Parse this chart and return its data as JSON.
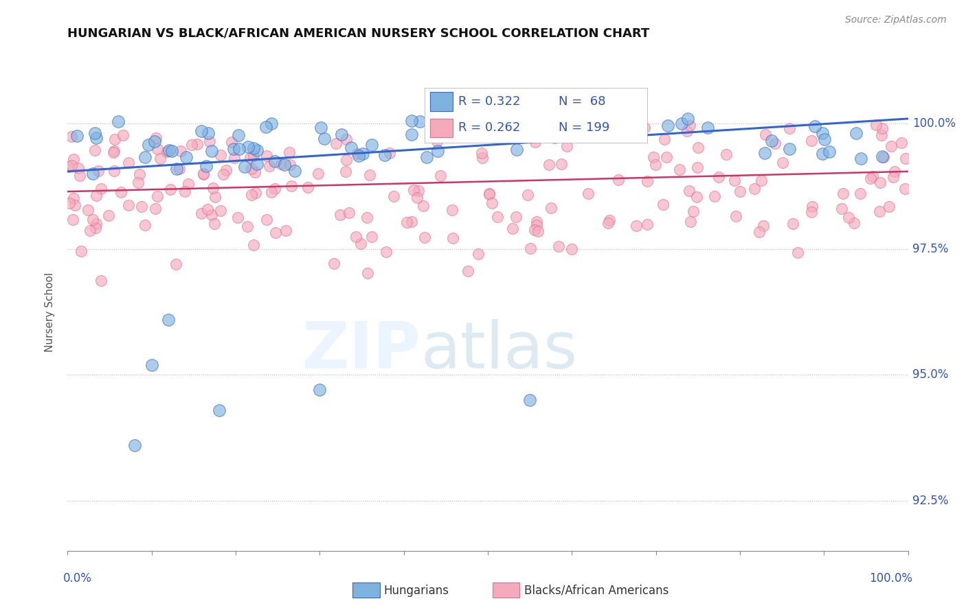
{
  "title": "HUNGARIAN VS BLACK/AFRICAN AMERICAN NURSERY SCHOOL CORRELATION CHART",
  "source_text": "Source: ZipAtlas.com",
  "ylabel": "Nursery School",
  "xmin": 0.0,
  "xmax": 100.0,
  "ymin": 91.5,
  "ymax": 101.0,
  "yticks": [
    92.5,
    95.0,
    97.5,
    100.0
  ],
  "ytick_labels": [
    "92.5%",
    "95.0%",
    "97.5%",
    "100.0%"
  ],
  "legend_r1": "R = 0.322",
  "legend_n1": "N =  68",
  "legend_r2": "R = 0.262",
  "legend_n2": "N = 199",
  "color_hungarian": "#7EB3E0",
  "color_black": "#F5AABC",
  "color_trendline_hungarian": "#3366CC",
  "color_trendline_black": "#CC3366",
  "color_axis_labels": "#3355BB",
  "blue_trend": [
    99.05,
    100.1
  ],
  "pink_trend": [
    98.65,
    99.05
  ]
}
